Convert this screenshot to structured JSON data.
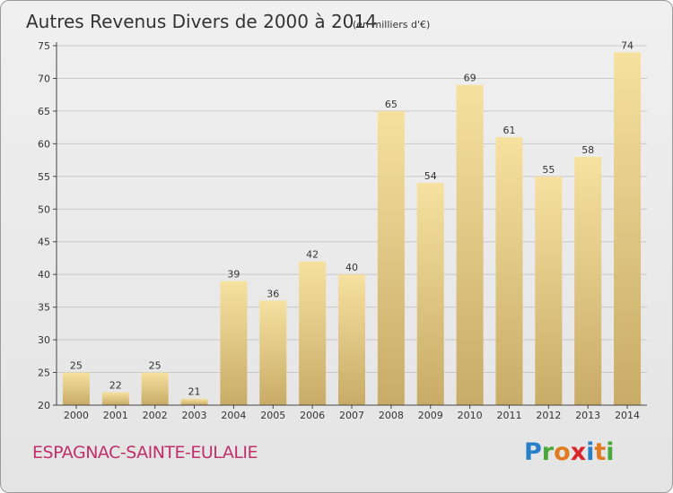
{
  "header": {
    "title": "Autres Revenus Divers de 2000 à 2014",
    "subtitle": "(en milliers d'€)"
  },
  "footer": {
    "place": "ESPAGNAC-SAINTE-EULALIE",
    "logo_letters": [
      "P",
      "r",
      "o",
      "x",
      "i",
      "t",
      "i"
    ],
    "logo_colors": [
      "#2a7fc9",
      "#4aa83a",
      "#e07b20",
      "#d8262b",
      "#2a7fc9",
      "#e07b20",
      "#4aa83a"
    ]
  },
  "colors": {
    "bar_light": "#f6e1a0",
    "bar_dark": "#c8ab66",
    "grid": "#c8c8c8",
    "axis": "#444444"
  },
  "chart_data": {
    "type": "bar",
    "categories": [
      "2000",
      "2001",
      "2002",
      "2003",
      "2004",
      "2005",
      "2006",
      "2007",
      "2008",
      "2009",
      "2010",
      "2011",
      "2012",
      "2013",
      "2014"
    ],
    "values": [
      25,
      22,
      25,
      21,
      39,
      36,
      42,
      40,
      65,
      54,
      69,
      61,
      55,
      58,
      74
    ],
    "ylim": [
      20,
      75
    ],
    "yticks": [
      20,
      25,
      30,
      35,
      40,
      45,
      50,
      55,
      60,
      65,
      70,
      75
    ],
    "grid": true
  }
}
